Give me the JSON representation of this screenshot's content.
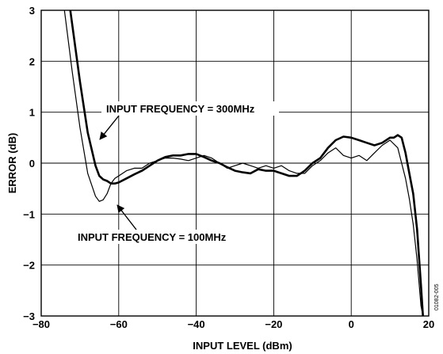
{
  "chart_data": {
    "type": "line",
    "title": "",
    "xlabel": "INPUT LEVEL (dBm)",
    "ylabel": "ERROR (dB)",
    "xlim": [
      -80,
      20
    ],
    "ylim": [
      -3,
      3
    ],
    "x_ticks": [
      -80,
      -60,
      -40,
      -20,
      0,
      20
    ],
    "x_tick_labels": [
      "−80",
      "−60",
      "−40",
      "−20",
      "0",
      "20"
    ],
    "y_ticks": [
      3,
      2,
      1,
      0,
      -1,
      -2,
      -3
    ],
    "y_tick_labels": [
      "3",
      "2",
      "1",
      "0",
      "−1",
      "−2",
      "−3"
    ],
    "grid": true,
    "series": [
      {
        "name": "INPUT FREQUENCY = 300MHz",
        "color": "#000000",
        "line": "thick",
        "x": [
          -72.5,
          -70,
          -68,
          -66,
          -65,
          -64,
          -63,
          -62,
          -61,
          -60,
          -58,
          -56,
          -54,
          -52,
          -50,
          -48,
          -46,
          -44,
          -42,
          -40,
          -38,
          -36,
          -34,
          -32,
          -30,
          -28,
          -26,
          -24,
          -22,
          -20,
          -18,
          -16,
          -14,
          -12,
          -10,
          -8,
          -6,
          -4,
          -2,
          0,
          2,
          4,
          6,
          8,
          10,
          11,
          12,
          13,
          14,
          15,
          16,
          17,
          18,
          18.5
        ],
        "y": [
          3.0,
          1.6,
          0.6,
          -0.05,
          -0.25,
          -0.32,
          -0.35,
          -0.4,
          -0.4,
          -0.38,
          -0.3,
          -0.22,
          -0.15,
          -0.05,
          0.05,
          0.12,
          0.15,
          0.15,
          0.18,
          0.18,
          0.12,
          0.05,
          0.0,
          -0.08,
          -0.15,
          -0.18,
          -0.2,
          -0.12,
          -0.15,
          -0.15,
          -0.2,
          -0.25,
          -0.25,
          -0.15,
          0.0,
          0.1,
          0.3,
          0.45,
          0.52,
          0.5,
          0.45,
          0.4,
          0.35,
          0.4,
          0.5,
          0.5,
          0.55,
          0.5,
          0.2,
          -0.2,
          -0.6,
          -1.3,
          -2.4,
          -3.0
        ]
      },
      {
        "name": "INPUT FREQUENCY = 100MHz",
        "color": "#000000",
        "line": "thin",
        "x": [
          -74,
          -72,
          -70,
          -68,
          -66,
          -65,
          -64,
          -63,
          -62,
          -61,
          -60,
          -58,
          -56,
          -54,
          -52,
          -50,
          -48,
          -46,
          -44,
          -42,
          -40,
          -38,
          -36,
          -34,
          -32,
          -30,
          -28,
          -26,
          -24,
          -22,
          -20,
          -18,
          -16,
          -14,
          -12,
          -10,
          -8,
          -6,
          -4,
          -2,
          0,
          2,
          4,
          6,
          8,
          10,
          12,
          13,
          14,
          15,
          16,
          17,
          18,
          18.5
        ],
        "y": [
          3.0,
          1.8,
          0.7,
          -0.2,
          -0.65,
          -0.75,
          -0.72,
          -0.6,
          -0.4,
          -0.3,
          -0.25,
          -0.15,
          -0.1,
          -0.1,
          0.0,
          0.05,
          0.1,
          0.1,
          0.08,
          0.05,
          0.1,
          0.15,
          0.1,
          0.0,
          -0.1,
          -0.05,
          0.0,
          -0.05,
          -0.1,
          -0.05,
          -0.1,
          -0.05,
          -0.15,
          -0.2,
          -0.2,
          -0.05,
          0.05,
          0.2,
          0.3,
          0.15,
          0.1,
          0.15,
          0.05,
          0.2,
          0.35,
          0.45,
          0.3,
          0.0,
          -0.3,
          -0.7,
          -1.2,
          -1.9,
          -2.8,
          -3.0
        ]
      }
    ],
    "annotations": [
      {
        "text": "INPUT FREQUENCY = 300MHz",
        "arrow_to": [
          -69,
          0.5
        ]
      },
      {
        "text": "INPUT FREQUENCY = 100MHz",
        "arrow_to": [
          -64,
          -0.78
        ]
      }
    ],
    "figure_id": "01082-005"
  }
}
